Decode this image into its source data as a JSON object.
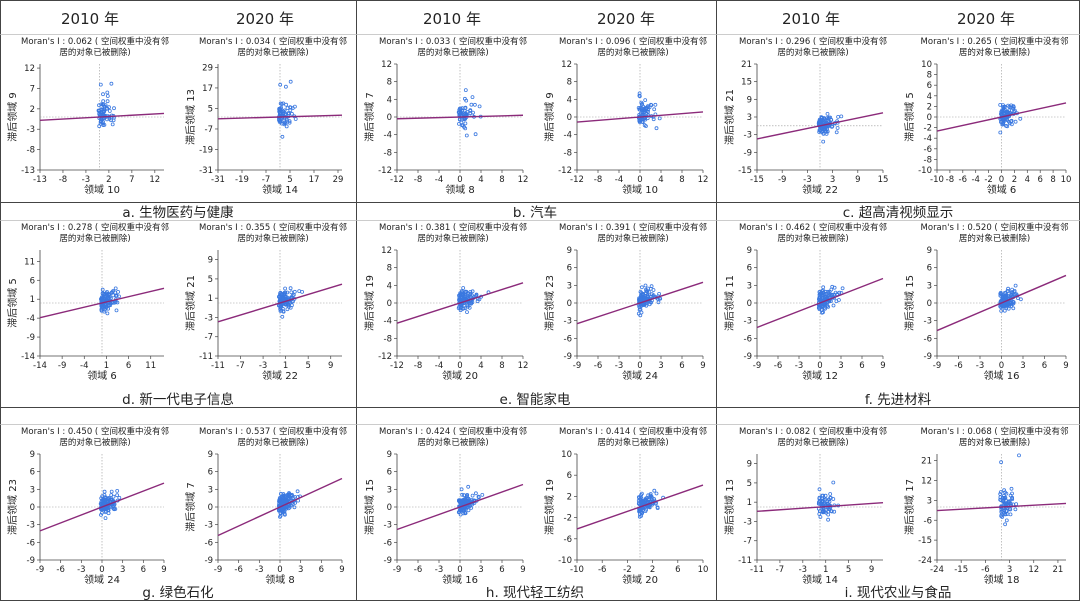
{
  "header": {
    "years": [
      "2010 年",
      "2020 年",
      "2010 年",
      "2020 年",
      "2010 年",
      "2020 年"
    ]
  },
  "colors": {
    "points": "#3a78e0",
    "line": "#8b2a7a",
    "grid": "#999999",
    "text": "#222222",
    "frame": "#444444"
  },
  "groups": [
    {
      "caption": "a. 生物医药与健康"
    },
    {
      "caption": "b. 汽车"
    },
    {
      "caption": "c. 超高清视频显示"
    },
    {
      "caption": "d. 新一代电子信息"
    },
    {
      "caption": "e. 智能家电"
    },
    {
      "caption": "f. 先进材料"
    },
    {
      "caption": "g. 绿色石化"
    },
    {
      "caption": "h. 现代轻工纺织"
    },
    {
      "caption": "i. 现代农业与食品"
    }
  ],
  "chart_data": [
    {
      "type": "scatter",
      "moran_line1": "Moran's I : 0.062 ( 空间权重中没有邻",
      "moran_line2": "居的对象已被删除)",
      "moran": 0.062,
      "xlabel": "领域 10",
      "ylabel": "滞后领域 9",
      "xticks": [
        -13,
        -8,
        -3,
        2,
        7,
        12
      ],
      "yticks": [
        12,
        7,
        2,
        -3,
        -8,
        -13
      ],
      "xlim": [
        -13,
        14
      ],
      "ylim": [
        -13,
        13
      ]
    },
    {
      "type": "scatter",
      "moran_line1": "Moran's I : 0.034 ( 空间权重中没有邻",
      "moran_line2": "居的对象已被删除)",
      "moran": 0.034,
      "xlabel": "领域 14",
      "ylabel": "滞后领域 13",
      "xticks": [
        -31,
        -19,
        -7,
        5,
        17,
        29
      ],
      "yticks": [
        29,
        17,
        5,
        -7,
        -19,
        -31
      ],
      "xlim": [
        -31,
        31
      ],
      "ylim": [
        -31,
        31
      ]
    },
    {
      "type": "scatter",
      "moran_line1": "Moran's I : 0.033 ( 空间权重中没有邻",
      "moran_line2": "居的对象已被删除)",
      "moran": 0.033,
      "xlabel": "领域 8",
      "ylabel": "滞后领域 7",
      "xticks": [
        -12,
        -8,
        -4,
        0,
        4,
        8,
        12
      ],
      "yticks": [
        12,
        8,
        4,
        0,
        -4,
        -8,
        -12
      ],
      "xlim": [
        -12,
        12
      ],
      "ylim": [
        -12,
        12
      ]
    },
    {
      "type": "scatter",
      "moran_line1": "Moran's I : 0.096 ( 空间权重中没有邻",
      "moran_line2": "居的对象已被删除)",
      "moran": 0.096,
      "xlabel": "领域 10",
      "ylabel": "滞后领域 9",
      "xticks": [
        -12,
        -8,
        -4,
        0,
        4,
        8,
        12
      ],
      "yticks": [
        12,
        8,
        4,
        0,
        -4,
        -8,
        -12
      ],
      "xlim": [
        -12,
        12
      ],
      "ylim": [
        -12,
        12
      ]
    },
    {
      "type": "scatter",
      "moran_line1": "Moran's I : 0.296 ( 空间权重中没有邻",
      "moran_line2": "居的对象已被删除)",
      "moran": 0.296,
      "xlabel": "领域 22",
      "ylabel": "滞后领域 21",
      "xticks": [
        -15,
        -9,
        -3,
        3,
        9,
        15
      ],
      "yticks": [
        21,
        15,
        9,
        3,
        -3,
        -9,
        -15
      ],
      "xlim": [
        -15,
        15
      ],
      "ylim": [
        -15,
        21
      ]
    },
    {
      "type": "scatter",
      "moran_line1": "Moran's I : 0.265 ( 空间权重中没有邻",
      "moran_line2": "居的对象已被删除)",
      "moran": 0.265,
      "xlabel": "领域 6",
      "ylabel": "滞后领域 5",
      "xticks": [
        -10,
        -8,
        -6,
        -4,
        -2,
        0,
        2,
        4,
        6,
        8,
        10
      ],
      "yticks": [
        10,
        8,
        6,
        4,
        2,
        0,
        -2,
        -4,
        -6,
        -8,
        -10
      ],
      "xlim": [
        -10,
        10
      ],
      "ylim": [
        -10,
        10
      ]
    },
    {
      "type": "scatter",
      "moran_line1": "Moran's I : 0.278 ( 空间权重中没有邻",
      "moran_line2": "居的对象已被删除)",
      "moran": 0.278,
      "xlabel": "领域 6",
      "ylabel": "滞后领域 5",
      "xticks": [
        -14,
        -9,
        -4,
        1,
        6,
        11
      ],
      "yticks": [
        11,
        6,
        1,
        -4,
        -9,
        -14
      ],
      "xlim": [
        -14,
        14
      ],
      "ylim": [
        -14,
        14
      ]
    },
    {
      "type": "scatter",
      "moran_line1": "Moran's I : 0.355 ( 空间权重中没有邻",
      "moran_line2": "居的对象已被删除)",
      "moran": 0.355,
      "xlabel": "领域 22",
      "ylabel": "滞后领域 21",
      "xticks": [
        -11,
        -7,
        -3,
        1,
        5,
        9
      ],
      "yticks": [
        9,
        5,
        1,
        -3,
        -7,
        -11
      ],
      "xlim": [
        -11,
        11
      ],
      "ylim": [
        -11,
        11
      ]
    },
    {
      "type": "scatter",
      "moran_line1": "Moran's I : 0.381 ( 空间权重中没有邻",
      "moran_line2": "居的对象已被删除)",
      "moran": 0.381,
      "xlabel": "领域 20",
      "ylabel": "滞后领域 19",
      "xticks": [
        -12,
        -8,
        -4,
        0,
        4,
        8,
        12
      ],
      "yticks": [
        12,
        8,
        4,
        0,
        -4,
        -8,
        -12
      ],
      "xlim": [
        -12,
        12
      ],
      "ylim": [
        -12,
        12
      ]
    },
    {
      "type": "scatter",
      "moran_line1": "Moran's I : 0.391 ( 空间权重中没有邻",
      "moran_line2": "居的对象已被删除)",
      "moran": 0.391,
      "xlabel": "领域 24",
      "ylabel": "滞后领域 23",
      "xticks": [
        -9,
        -6,
        -3,
        0,
        3,
        6,
        9
      ],
      "yticks": [
        9,
        6,
        3,
        0,
        -3,
        -6,
        -9
      ],
      "xlim": [
        -9,
        9
      ],
      "ylim": [
        -9,
        9
      ]
    },
    {
      "type": "scatter",
      "moran_line1": "Moran's I : 0.462 ( 空间权重中没有邻",
      "moran_line2": "居的对象已被删除)",
      "moran": 0.462,
      "xlabel": "领域 12",
      "ylabel": "滞后领域 11",
      "xticks": [
        -9,
        -6,
        -3,
        0,
        3,
        6,
        9
      ],
      "yticks": [
        9,
        6,
        3,
        0,
        -3,
        -6,
        -9
      ],
      "xlim": [
        -9,
        9
      ],
      "ylim": [
        -9,
        9
      ]
    },
    {
      "type": "scatter",
      "moran_line1": "Moran's I : 0.520 ( 空间权重中没有邻",
      "moran_line2": "居的对象已被删除)",
      "moran": 0.52,
      "xlabel": "领域 16",
      "ylabel": "滞后领域 15",
      "xticks": [
        -9,
        -6,
        -3,
        0,
        3,
        6,
        9
      ],
      "yticks": [
        9,
        6,
        3,
        0,
        -3,
        -6,
        -9
      ],
      "xlim": [
        -9,
        9
      ],
      "ylim": [
        -9,
        9
      ]
    },
    {
      "type": "scatter",
      "moran_line1": "Moran's I : 0.450 ( 空间权重中没有邻",
      "moran_line2": "居的对象已被删除)",
      "moran": 0.45,
      "xlabel": "领域 24",
      "ylabel": "滞后领域 23",
      "xticks": [
        -9,
        -6,
        -3,
        0,
        3,
        6,
        9
      ],
      "yticks": [
        9,
        6,
        3,
        0,
        -3,
        -6,
        -9
      ],
      "xlim": [
        -9,
        9
      ],
      "ylim": [
        -9,
        9
      ]
    },
    {
      "type": "scatter",
      "moran_line1": "Moran's I : 0.537 ( 空间权重中没有邻",
      "moran_line2": "居的对象已被删除)",
      "moran": 0.537,
      "xlabel": "领域 8",
      "ylabel": "滞后领域 7",
      "xticks": [
        -9,
        -6,
        -3,
        0,
        3,
        6,
        9
      ],
      "yticks": [
        9,
        6,
        3,
        0,
        -3,
        -6,
        -9
      ],
      "xlim": [
        -9,
        9
      ],
      "ylim": [
        -9,
        9
      ]
    },
    {
      "type": "scatter",
      "moran_line1": "Moran's I : 0.424 ( 空间权重中没有邻",
      "moran_line2": "居的对象已被删除)",
      "moran": 0.424,
      "xlabel": "领域 16",
      "ylabel": "滞后领域 15",
      "xticks": [
        -9,
        -6,
        -3,
        0,
        3,
        6,
        9
      ],
      "yticks": [
        9,
        6,
        3,
        0,
        -3,
        -6,
        -9
      ],
      "xlim": [
        -9,
        9
      ],
      "ylim": [
        -9,
        9
      ]
    },
    {
      "type": "scatter",
      "moran_line1": "Moran's I : 0.414 ( 空间权重中没有邻",
      "moran_line2": "居的对象已被删除)",
      "moran": 0.414,
      "xlabel": "领域 20",
      "ylabel": "滞后领域 19",
      "xticks": [
        -10,
        -6,
        -2,
        2,
        6,
        10
      ],
      "yticks": [
        10,
        6,
        2,
        -2,
        -6,
        -10
      ],
      "xlim": [
        -10,
        10
      ],
      "ylim": [
        -10,
        10
      ]
    },
    {
      "type": "scatter",
      "moran_line1": "Moran's I : 0.082 ( 空间权重中没有邻",
      "moran_line2": "居的对象已被删除)",
      "moran": 0.082,
      "xlabel": "领域 14",
      "ylabel": "滞后领域 13",
      "xticks": [
        -11,
        -7,
        -3,
        1,
        5,
        9
      ],
      "yticks": [
        9,
        5,
        1,
        -3,
        -7,
        -11
      ],
      "xlim": [
        -11,
        11
      ],
      "ylim": [
        -11,
        11
      ]
    },
    {
      "type": "scatter",
      "moran_line1": "Moran's I : 0.068 ( 空间权重中没有邻",
      "moran_line2": "居的对象已被删除)",
      "moran": 0.068,
      "xlabel": "领域 18",
      "ylabel": "滞后领域 17",
      "xticks": [
        -24,
        -15,
        -6,
        3,
        12,
        21
      ],
      "yticks": [
        21,
        12,
        3,
        -6,
        -15,
        -24
      ],
      "xlim": [
        -24,
        24
      ],
      "ylim": [
        -24,
        24
      ]
    }
  ]
}
